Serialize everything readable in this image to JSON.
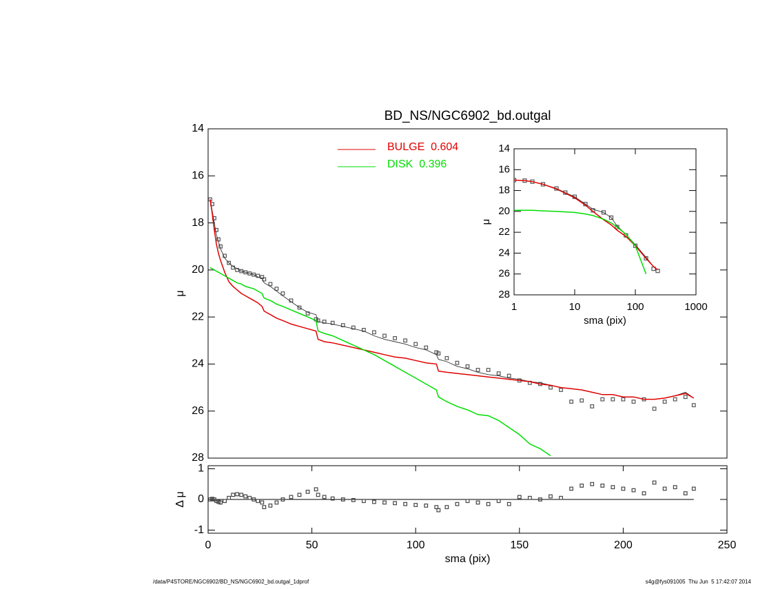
{
  "chart_data": [
    {
      "type": "line",
      "title": "BD_NS/NGC6902_bd.outgal",
      "ylabel": "μ",
      "x": [
        1,
        2,
        3,
        4,
        5,
        6,
        8,
        10,
        12,
        14,
        16,
        18,
        20,
        22,
        24,
        26,
        27,
        30,
        33,
        36,
        40,
        44,
        48,
        52,
        53,
        56,
        60,
        65,
        70,
        75,
        80,
        85,
        90,
        95,
        100,
        105,
        110,
        111,
        115,
        120,
        125,
        130,
        135,
        140,
        145,
        150,
        155,
        160,
        165,
        170,
        175,
        180,
        185,
        190,
        195,
        200,
        205,
        210,
        215,
        220,
        225,
        230,
        234
      ],
      "xlim": [
        0,
        250
      ],
      "ylim": [
        28,
        14
      ],
      "yticks": [
        14,
        16,
        18,
        20,
        22,
        24,
        26,
        28
      ],
      "legend": "upper center",
      "series": [
        {
          "type": "scatter",
          "color": "#555555",
          "values": [
            17.0,
            17.2,
            17.8,
            18.3,
            18.7,
            19.0,
            19.4,
            19.7,
            19.9,
            20.0,
            20.05,
            20.1,
            20.15,
            20.2,
            20.25,
            20.3,
            20.4,
            20.6,
            20.8,
            21.0,
            21.3,
            21.6,
            21.85,
            22.1,
            22.15,
            22.2,
            22.25,
            22.35,
            22.45,
            22.55,
            22.65,
            22.8,
            22.9,
            23.0,
            23.15,
            23.3,
            23.5,
            23.55,
            23.75,
            23.95,
            24.1,
            24.25,
            24.25,
            24.4,
            24.5,
            24.7,
            24.8,
            24.85,
            25.0,
            25.1,
            25.6,
            25.55,
            25.8,
            25.5,
            25.5,
            25.5,
            25.6,
            25.5,
            25.9,
            25.6,
            25.5,
            25.4,
            25.75
          ]
        },
        {
          "type": "line",
          "color": "#333333",
          "values": [
            17.0,
            17.5,
            18.0,
            18.5,
            18.8,
            19.1,
            19.5,
            19.7,
            19.85,
            19.95,
            20.05,
            20.1,
            20.15,
            20.2,
            20.3,
            20.35,
            20.55,
            20.7,
            20.9,
            21.1,
            21.35,
            21.6,
            21.8,
            21.9,
            22.2,
            22.25,
            22.3,
            22.4,
            22.5,
            22.6,
            22.8,
            22.95,
            23.05,
            23.15,
            23.3,
            23.4,
            23.6,
            23.8,
            23.9,
            24.1,
            24.2,
            24.35,
            24.45,
            24.5,
            24.6,
            24.65,
            24.75,
            24.8,
            24.9,
            25.0,
            25.05,
            25.1,
            25.2,
            25.3,
            25.3,
            25.4,
            25.4,
            25.5,
            25.5,
            25.45,
            25.35,
            25.2,
            25.45
          ]
        },
        {
          "type": "line",
          "name": "BULGE  0.604",
          "color": "#e00000",
          "values": [
            17.0,
            17.6,
            18.3,
            18.9,
            19.3,
            19.6,
            20.1,
            20.5,
            20.7,
            20.85,
            21.0,
            21.1,
            21.2,
            21.3,
            21.4,
            21.55,
            21.75,
            21.9,
            22.05,
            22.15,
            22.3,
            22.4,
            22.5,
            22.6,
            22.95,
            23.05,
            23.1,
            23.2,
            23.3,
            23.4,
            23.5,
            23.6,
            23.7,
            23.75,
            23.85,
            23.95,
            24.0,
            24.3,
            24.35,
            24.4,
            24.45,
            24.5,
            24.55,
            24.6,
            24.65,
            24.7,
            24.75,
            24.85,
            24.9,
            25.0,
            25.05,
            25.1,
            25.2,
            25.3,
            25.3,
            25.4,
            25.4,
            25.5,
            25.5,
            25.45,
            25.35,
            25.25,
            25.45
          ]
        },
        {
          "type": "line",
          "name": "DISK  0.396",
          "color": "#00dd00",
          "values": [
            19.9,
            19.95,
            20.0,
            20.05,
            20.1,
            20.15,
            20.25,
            20.35,
            20.45,
            20.55,
            20.6,
            20.7,
            20.75,
            20.8,
            20.9,
            21.0,
            21.2,
            21.3,
            21.45,
            21.55,
            21.7,
            21.85,
            22.0,
            22.15,
            22.6,
            22.7,
            22.8,
            23.0,
            23.2,
            23.4,
            23.6,
            23.85,
            24.1,
            24.35,
            24.6,
            24.85,
            25.1,
            25.4,
            25.6,
            25.8,
            25.95,
            26.15,
            26.2,
            26.4,
            26.7,
            27.0,
            27.4,
            27.6,
            27.9,
            null,
            null,
            null,
            null,
            null,
            null,
            null,
            null,
            null,
            null,
            null,
            null,
            null,
            null
          ]
        }
      ]
    },
    {
      "type": "scatter",
      "xlabel": "sma (pix)",
      "ylabel": "Δ μ",
      "x": [
        1,
        2,
        3,
        4,
        5,
        6,
        8,
        10,
        12,
        14,
        16,
        18,
        20,
        22,
        24,
        26,
        27,
        30,
        33,
        36,
        40,
        44,
        48,
        52,
        53,
        56,
        60,
        65,
        70,
        75,
        80,
        85,
        90,
        95,
        100,
        105,
        110,
        111,
        115,
        120,
        125,
        130,
        135,
        140,
        145,
        150,
        155,
        160,
        165,
        170,
        175,
        180,
        185,
        190,
        195,
        200,
        205,
        210,
        215,
        220,
        225,
        230,
        234
      ],
      "xlim": [
        0,
        250
      ],
      "xticks": [
        0,
        50,
        100,
        150,
        200,
        250
      ],
      "ylim": [
        -1.1,
        1.1
      ],
      "yticks": [
        -1,
        0,
        1
      ],
      "series": [
        {
          "color": "#444444",
          "values": [
            0,
            0.02,
            0,
            -0.05,
            -0.08,
            -0.1,
            -0.05,
            0.05,
            0.15,
            0.17,
            0.15,
            0.1,
            0.05,
            0,
            -0.05,
            -0.1,
            -0.25,
            -0.2,
            -0.1,
            0,
            0.08,
            0.15,
            0.25,
            0.33,
            0.15,
            0.08,
            0.03,
            0,
            -0.02,
            -0.05,
            -0.08,
            -0.1,
            -0.12,
            -0.15,
            -0.18,
            -0.2,
            -0.25,
            -0.35,
            -0.25,
            -0.15,
            -0.05,
            -0.1,
            -0.15,
            -0.05,
            -0.15,
            0.08,
            0.05,
            0,
            0.1,
            0.05,
            0.35,
            0.45,
            0.5,
            0.45,
            0.4,
            0.35,
            0.3,
            0.2,
            0.55,
            0.35,
            0.4,
            0.2,
            0.35
          ]
        }
      ]
    },
    {
      "type": "line",
      "xlabel": "sma (pix)",
      "ylabel": "μ",
      "xscale": "log",
      "x": [
        1,
        1.5,
        2,
        3,
        5,
        7,
        10,
        15,
        20,
        30,
        40,
        50,
        70,
        100,
        150,
        200,
        234
      ],
      "xlim": [
        1,
        1000
      ],
      "xticks": [
        1,
        10,
        100,
        1000
      ],
      "ylim": [
        28,
        14
      ],
      "yticks": [
        14,
        16,
        18,
        20,
        22,
        24,
        26,
        28
      ],
      "series": [
        {
          "type": "scatter",
          "color": "#555555",
          "values": [
            17.0,
            17.05,
            17.15,
            17.4,
            17.8,
            18.2,
            18.6,
            19.3,
            19.9,
            20.1,
            20.6,
            21.5,
            22.3,
            23.3,
            24.5,
            25.5,
            25.7
          ]
        },
        {
          "type": "line",
          "color": "#333333",
          "values": [
            17.0,
            17.05,
            17.15,
            17.4,
            17.8,
            18.2,
            18.6,
            19.3,
            19.8,
            20.1,
            20.6,
            21.4,
            22.2,
            23.2,
            24.4,
            25.3,
            25.6
          ]
        },
        {
          "type": "line",
          "color": "#e00000",
          "values": [
            17.0,
            17.05,
            17.15,
            17.4,
            17.85,
            18.25,
            18.7,
            19.4,
            20.0,
            20.8,
            21.3,
            21.8,
            22.4,
            23.3,
            24.5,
            25.3,
            25.6
          ]
        },
        {
          "type": "line",
          "color": "#00dd00",
          "values": [
            19.9,
            19.9,
            19.9,
            19.95,
            20.0,
            20.05,
            20.1,
            20.25,
            20.4,
            20.75,
            21.1,
            21.5,
            22.2,
            23.3,
            26.0,
            null,
            null
          ]
        }
      ]
    }
  ],
  "footer": {
    "path": "/data/P4STORE/NGC6902/BD_NS/NGC6902_bd.outgal_1dprof",
    "stamp": "s4g@fys091005  Thu Jun  5 17:42:07 2014"
  }
}
